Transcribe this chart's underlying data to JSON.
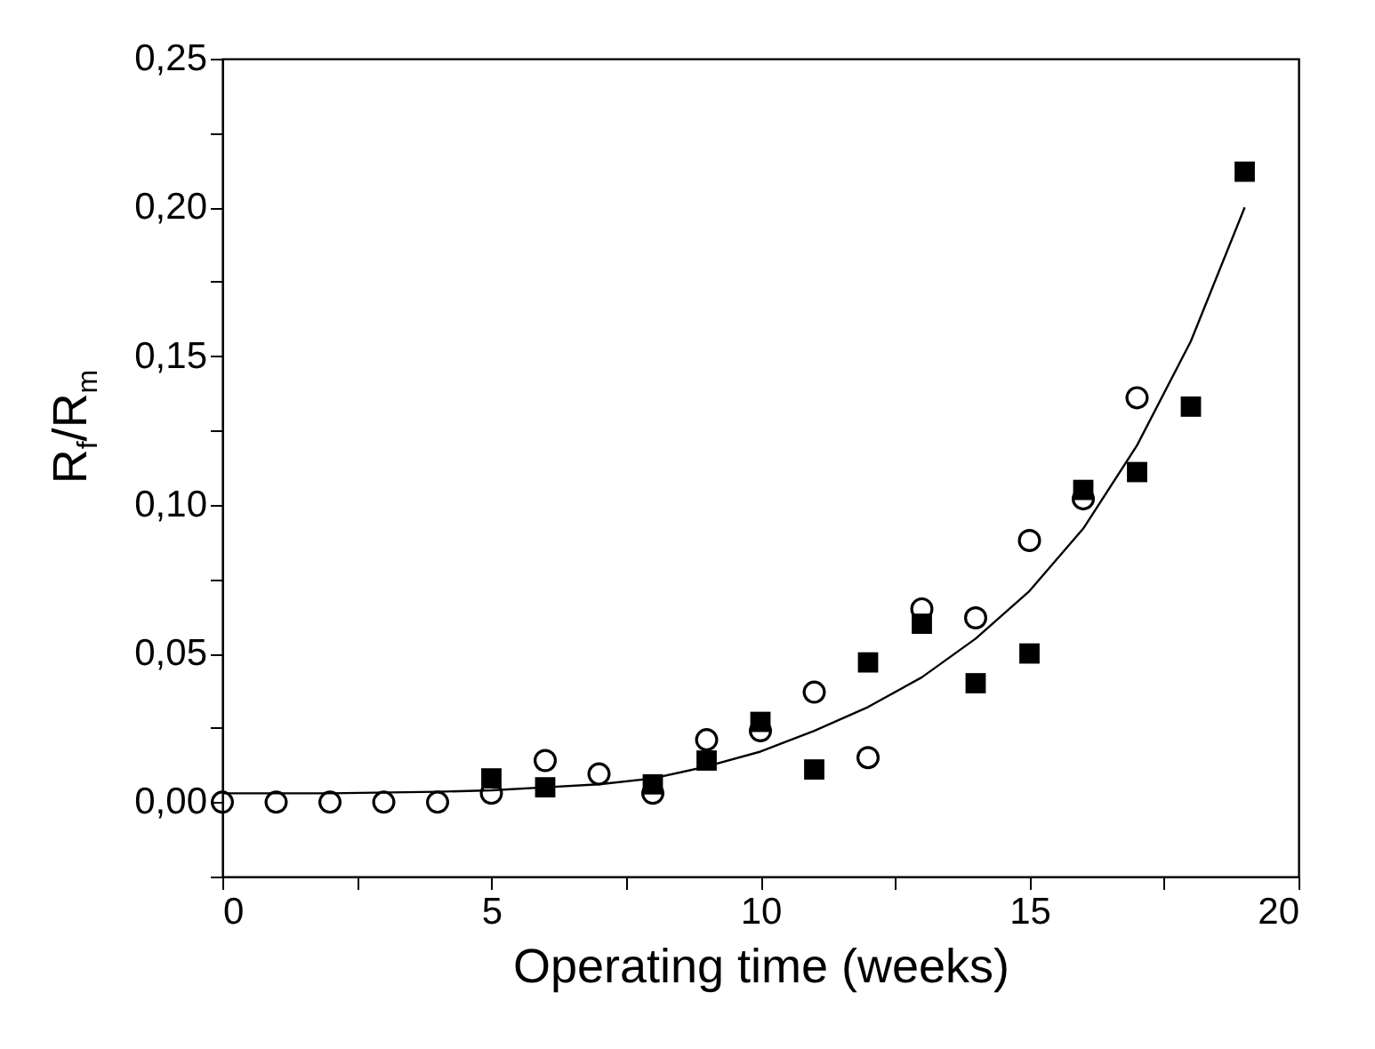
{
  "chart_data": {
    "type": "scatter",
    "xlabel": "Operating time (weeks)",
    "ylabel": "R$_{f}$/R$_{m}$",
    "xlim": [
      0,
      20
    ],
    "ylim": [
      -0.025,
      0.25
    ],
    "xticks": [
      {
        "value": 0,
        "label": "0"
      },
      {
        "value": 2.5,
        "label": null
      },
      {
        "value": 5,
        "label": "5"
      },
      {
        "value": 7.5,
        "label": null
      },
      {
        "value": 10,
        "label": "10"
      },
      {
        "value": 12.5,
        "label": null
      },
      {
        "value": 15,
        "label": "15"
      },
      {
        "value": 17.5,
        "label": null
      },
      {
        "value": 20,
        "label": "20"
      }
    ],
    "yticks": [
      {
        "value": -0.025,
        "label": null
      },
      {
        "value": 0,
        "label": "0,00"
      },
      {
        "value": 0.025,
        "label": null
      },
      {
        "value": 0.05,
        "label": "0,05"
      },
      {
        "value": 0.075,
        "label": null
      },
      {
        "value": 0.1,
        "label": "0,10"
      },
      {
        "value": 0.125,
        "label": null
      },
      {
        "value": 0.15,
        "label": "0,15"
      },
      {
        "value": 0.175,
        "label": null
      },
      {
        "value": 0.2,
        "label": "0,20"
      },
      {
        "value": 0.225,
        "label": null
      },
      {
        "value": 0.25,
        "label": "0,25"
      }
    ],
    "grid": false,
    "series": [
      {
        "type": "line",
        "color": "#000000",
        "marker": "none",
        "x": [
          0,
          2,
          4,
          5,
          6,
          7,
          8,
          9,
          10,
          11,
          12,
          13,
          14,
          15,
          16,
          17,
          18,
          19
        ],
        "values": [
          0.003,
          0.003,
          0.0035,
          0.004,
          0.005,
          0.006,
          0.008,
          0.012,
          0.017,
          0.024,
          0.032,
          0.042,
          0.055,
          0.071,
          0.092,
          0.12,
          0.155,
          0.2
        ]
      },
      {
        "type": "scatter",
        "color": "#000000",
        "marker": "square",
        "x": [
          5,
          6,
          8,
          9,
          10,
          11,
          12,
          13,
          14,
          15,
          16,
          17,
          18,
          19
        ],
        "values": [
          0.008,
          0.005,
          0.006,
          0.014,
          0.027,
          0.011,
          0.047,
          0.06,
          0.04,
          0.05,
          0.105,
          0.111,
          0.133,
          0.212
        ]
      },
      {
        "type": "scatter",
        "color": "#000000",
        "marker": "circle",
        "x": [
          0,
          1,
          2,
          3,
          4,
          5,
          6,
          7,
          8,
          9,
          10,
          11,
          12,
          13,
          14,
          15,
          16,
          17
        ],
        "values": [
          0,
          0,
          0,
          0,
          0,
          0.003,
          0.014,
          0.0095,
          0.003,
          0.021,
          0.024,
          0.037,
          0.015,
          0.065,
          0.062,
          0.088,
          0.102,
          0.136
        ]
      }
    ]
  }
}
